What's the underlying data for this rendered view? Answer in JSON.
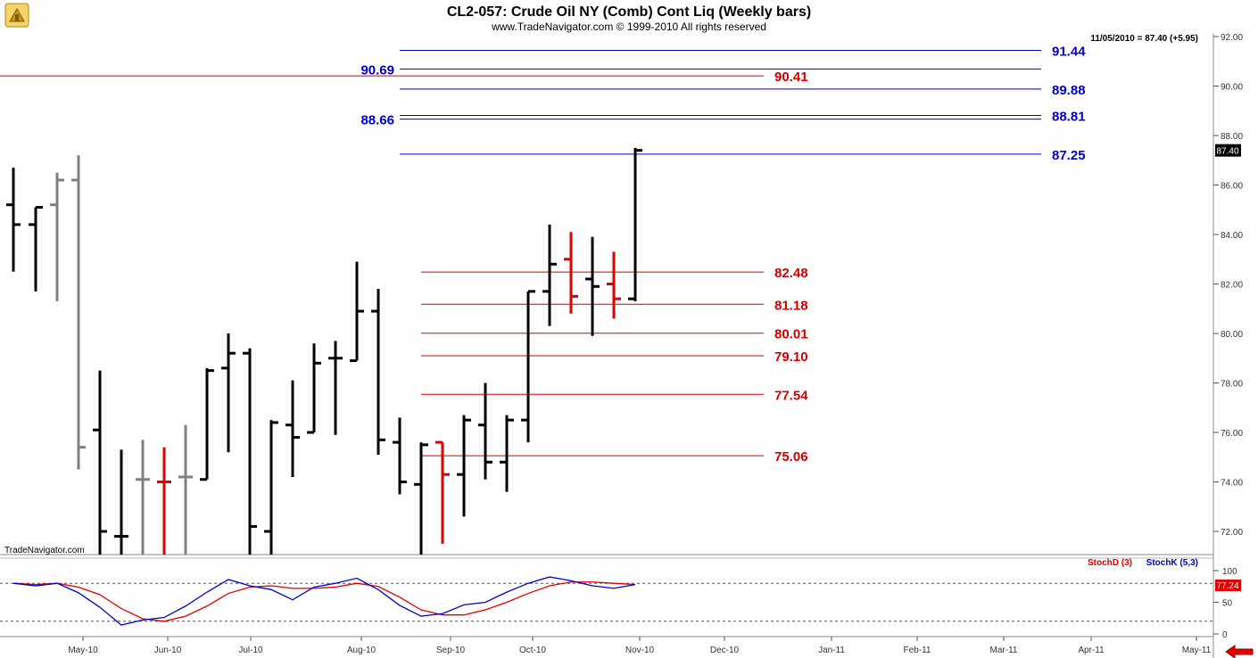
{
  "header": {
    "title": "CL2-057:  Crude Oil NY (Comb) Cont Liq  (Weekly bars)",
    "subtitle": "www.TradeNavigator.com © 1999-2010 All rights reserved",
    "last_info": "11/05/2010 = 87.40 (+5.95)",
    "watermark": "TradeNavigator.com"
  },
  "chart_data": [
    {
      "type": "ohlc",
      "title": "CL2-057:  Crude Oil NY (Comb) Cont Liq  (Weekly bars)",
      "ylim": [
        70.5,
        92.3
      ],
      "y_ticks": [
        "72.00",
        "74.00",
        "76.00",
        "78.00",
        "80.00",
        "82.00",
        "84.00",
        "86.00",
        "88.00",
        "90.00",
        "92.00"
      ],
      "x_ticks": [
        "May-10",
        "Jun-10",
        "Jul-10",
        "Aug-10",
        "Sep-10",
        "Oct-10",
        "Nov-10",
        "Dec-10",
        "Jan-11",
        "Feb-11",
        "Mar-11",
        "Apr-11",
        "May-11"
      ],
      "last_price_label": "87.40",
      "bars": [
        {
          "x": 15,
          "o": 85.2,
          "h": 86.7,
          "l": 82.5,
          "c": 84.4,
          "color": "#000000"
        },
        {
          "x": 40,
          "o": 84.4,
          "h": 85.1,
          "l": 81.7,
          "c": 85.1,
          "color": "#000000"
        },
        {
          "x": 64,
          "o": 85.2,
          "h": 86.5,
          "l": 81.3,
          "c": 86.2,
          "color": "#808080"
        },
        {
          "x": 88,
          "o": 86.2,
          "h": 87.2,
          "l": 74.5,
          "c": 75.4,
          "color": "#808080"
        },
        {
          "x": 112,
          "o": 76.1,
          "h": 78.5,
          "l": 70.5,
          "c": 72.0,
          "color": "#000000"
        },
        {
          "x": 136,
          "o": 71.8,
          "h": 75.3,
          "l": 70.5,
          "c": 71.8,
          "color": "#000000"
        },
        {
          "x": 160,
          "o": 74.1,
          "h": 75.7,
          "l": 70.5,
          "c": 74.1,
          "color": "#808080"
        },
        {
          "x": 184,
          "o": 74.0,
          "h": 75.4,
          "l": 70.5,
          "c": 74.0,
          "color": "#e00000"
        },
        {
          "x": 208,
          "o": 74.2,
          "h": 76.3,
          "l": 70.5,
          "c": 74.2,
          "color": "#808080"
        },
        {
          "x": 232,
          "o": 74.1,
          "h": 78.6,
          "l": 74.1,
          "c": 78.5,
          "color": "#000000"
        },
        {
          "x": 256,
          "o": 78.6,
          "h": 80.0,
          "l": 75.2,
          "c": 79.2,
          "color": "#000000"
        },
        {
          "x": 280,
          "o": 79.2,
          "h": 79.4,
          "l": 71.0,
          "c": 72.2,
          "color": "#000000"
        },
        {
          "x": 304,
          "o": 72.0,
          "h": 76.5,
          "l": 70.5,
          "c": 76.4,
          "color": "#000000"
        },
        {
          "x": 328,
          "o": 76.3,
          "h": 78.1,
          "l": 74.2,
          "c": 75.8,
          "color": "#000000"
        },
        {
          "x": 352,
          "o": 76.0,
          "h": 79.6,
          "l": 76.0,
          "c": 78.8,
          "color": "#000000"
        },
        {
          "x": 376,
          "o": 79.0,
          "h": 79.7,
          "l": 75.9,
          "c": 79.0,
          "color": "#000000"
        },
        {
          "x": 400,
          "o": 78.9,
          "h": 82.9,
          "l": 78.9,
          "c": 80.9,
          "color": "#000000"
        },
        {
          "x": 424,
          "o": 80.9,
          "h": 81.8,
          "l": 75.1,
          "c": 75.7,
          "color": "#000000"
        },
        {
          "x": 448,
          "o": 75.6,
          "h": 76.6,
          "l": 73.5,
          "c": 74.0,
          "color": "#000000"
        },
        {
          "x": 472,
          "o": 73.9,
          "h": 75.6,
          "l": 70.5,
          "c": 75.5,
          "color": "#000000"
        },
        {
          "x": 496,
          "o": 75.6,
          "h": 75.6,
          "l": 71.5,
          "c": 74.3,
          "color": "#e00000"
        },
        {
          "x": 520,
          "o": 74.3,
          "h": 76.7,
          "l": 72.6,
          "c": 76.5,
          "color": "#000000"
        },
        {
          "x": 544,
          "o": 76.3,
          "h": 78.0,
          "l": 74.1,
          "c": 74.8,
          "color": "#000000"
        },
        {
          "x": 568,
          "o": 74.8,
          "h": 76.7,
          "l": 73.6,
          "c": 76.5,
          "color": "#000000"
        },
        {
          "x": 592,
          "o": 76.5,
          "h": 81.7,
          "l": 75.6,
          "c": 81.7,
          "color": "#000000"
        },
        {
          "x": 616,
          "o": 81.7,
          "h": 84.4,
          "l": 80.3,
          "c": 82.8,
          "color": "#000000"
        },
        {
          "x": 640,
          "o": 83.0,
          "h": 84.1,
          "l": 80.8,
          "c": 81.5,
          "color": "#e00000"
        },
        {
          "x": 664,
          "o": 82.2,
          "h": 83.9,
          "l": 79.9,
          "c": 81.9,
          "color": "#000000"
        },
        {
          "x": 688,
          "o": 82.0,
          "h": 83.3,
          "l": 80.6,
          "c": 81.4,
          "color": "#e00000"
        },
        {
          "x": 712,
          "o": 81.4,
          "h": 87.5,
          "l": 81.3,
          "c": 87.4,
          "color": "#000000"
        }
      ],
      "level_lines": [
        {
          "value": 91.44,
          "label": "91.44",
          "color": "#0000cc",
          "x_start": 448,
          "x_end": 1167,
          "label_side": "right"
        },
        {
          "value": 90.69,
          "label": "90.69",
          "color": "#0000cc",
          "x_start": 448,
          "x_end": 1167,
          "label_side": "left"
        },
        {
          "value": 90.41,
          "label": "90.41",
          "color": "#d00000",
          "x_start": 0,
          "x_end": 856,
          "label_side": "right"
        },
        {
          "value": 89.88,
          "label": "89.88",
          "color": "#0000cc",
          "x_start": 448,
          "x_end": 1167,
          "label_side": "right"
        },
        {
          "value": 88.81,
          "label": "88.81",
          "color": "#0000cc",
          "x_start": 448,
          "x_end": 1167,
          "label_side": "right"
        },
        {
          "value": 88.66,
          "label": "88.66",
          "color": "#0000cc",
          "x_start": 448,
          "x_end": 1167,
          "label_side": "left"
        },
        {
          "value": 87.25,
          "label": "87.25",
          "color": "#0000cc",
          "x_start": 448,
          "x_end": 1167,
          "label_side": "right"
        },
        {
          "value": 82.48,
          "label": "82.48",
          "color": "#d00000",
          "x_start": 472,
          "x_end": 856,
          "label_side": "right"
        },
        {
          "value": 81.18,
          "label": "81.18",
          "color": "#d00000",
          "x_start": 472,
          "x_end": 856,
          "label_side": "right"
        },
        {
          "value": 80.01,
          "label": "80.01",
          "color": "#d00000",
          "x_start": 472,
          "x_end": 856,
          "label_side": "right"
        },
        {
          "value": 79.1,
          "label": "79.10",
          "color": "#d00000",
          "x_start": 472,
          "x_end": 856,
          "label_side": "right"
        },
        {
          "value": 77.54,
          "label": "77.54",
          "color": "#d00000",
          "x_start": 472,
          "x_end": 856,
          "label_side": "right"
        },
        {
          "value": 75.06,
          "label": "75.06",
          "color": "#d00000",
          "x_start": 472,
          "x_end": 856,
          "label_side": "right"
        }
      ]
    },
    {
      "type": "line",
      "ylim": [
        0,
        100
      ],
      "y_ticks": [
        "0",
        "50",
        "100"
      ],
      "reference_lines": [
        80,
        20
      ],
      "last_value_label": "77.24",
      "legend": [
        "StochD (3)",
        "StochK (5,3)"
      ],
      "x": [
        15,
        40,
        64,
        88,
        112,
        136,
        160,
        184,
        208,
        232,
        256,
        280,
        304,
        328,
        352,
        376,
        400,
        424,
        448,
        472,
        496,
        520,
        544,
        568,
        592,
        616,
        640,
        664,
        688,
        712
      ],
      "series": [
        {
          "name": "StochD (3)",
          "color": "#e00000",
          "values": [
            80,
            78,
            80,
            74,
            62,
            40,
            24,
            20,
            28,
            44,
            64,
            74,
            76,
            72,
            72,
            74,
            80,
            75,
            58,
            38,
            30,
            30,
            38,
            50,
            64,
            76,
            82,
            82,
            80,
            78
          ]
        },
        {
          "name": "StochK (5,3)",
          "color": "#0000cc",
          "values": [
            80,
            76,
            80,
            65,
            42,
            14,
            22,
            26,
            44,
            66,
            86,
            76,
            70,
            54,
            74,
            80,
            88,
            70,
            45,
            28,
            32,
            46,
            50,
            66,
            80,
            90,
            84,
            76,
            72,
            78
          ]
        }
      ]
    }
  ],
  "colors": {
    "price_axis_bg": "#ffffff",
    "grid": "#c8c8c8",
    "blue_level": "#0000cc",
    "red_level": "#d00000",
    "price_badge": "#000000",
    "stoch_badge": "#e00000"
  },
  "icons": {
    "logo": "trade-navigator-logo-icon",
    "scroll": "red-left-arrow-icon"
  }
}
